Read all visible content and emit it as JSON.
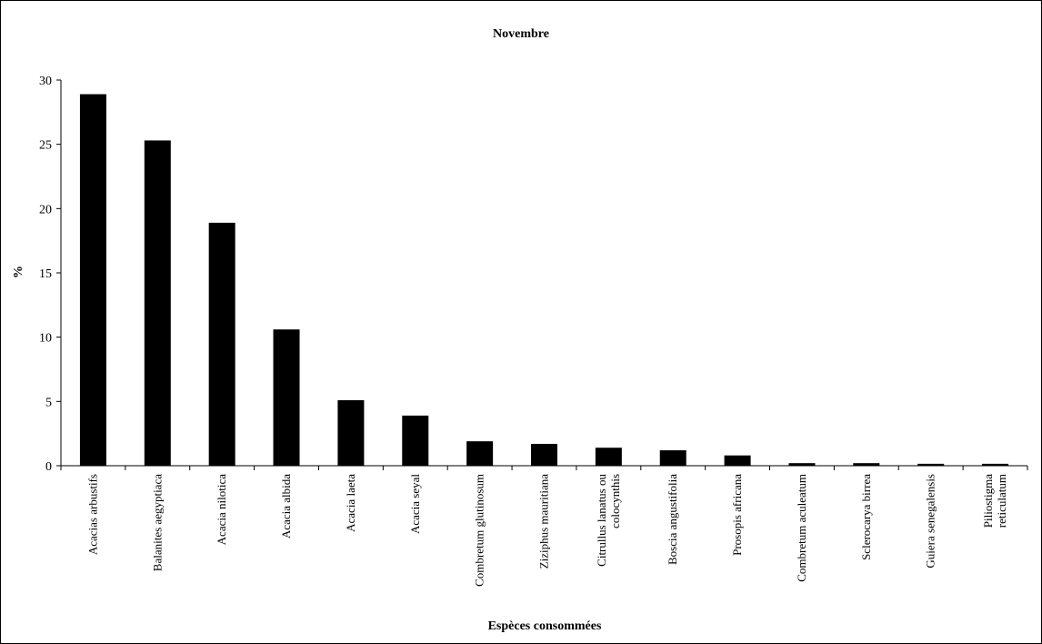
{
  "chart_data": {
    "type": "bar",
    "title": "Novembre",
    "xlabel": "Espèces consommées",
    "ylabel": "%",
    "ylim": [
      0,
      30
    ],
    "yticks": [
      0,
      5,
      10,
      15,
      20,
      25,
      30
    ],
    "grid": false,
    "legend": "none",
    "bar_color": "#000000",
    "categories": [
      [
        "Acacias arbustifs"
      ],
      [
        "Balanites aegyptiaca"
      ],
      [
        "Acacia nilotica"
      ],
      [
        "Acacia albida"
      ],
      [
        "Acacia laeta"
      ],
      [
        "Acacia seyal"
      ],
      [
        "Combretum glutinosum"
      ],
      [
        "Ziziphus mauritiana"
      ],
      [
        "Citrullus lanatus ou",
        "colocynthis"
      ],
      [
        "Boscia angustifolia"
      ],
      [
        "Prosopis africana"
      ],
      [
        "Combretum aculeatum"
      ],
      [
        "Sclerocarya birrea"
      ],
      [
        "Guiera senegalensis"
      ],
      [
        "Piliostigma",
        "reticulatum"
      ]
    ],
    "values": [
      28.9,
      25.3,
      18.9,
      10.6,
      5.1,
      3.9,
      1.9,
      1.7,
      1.4,
      1.2,
      0.8,
      0.2,
      0.2,
      0.15,
      0.15
    ]
  }
}
